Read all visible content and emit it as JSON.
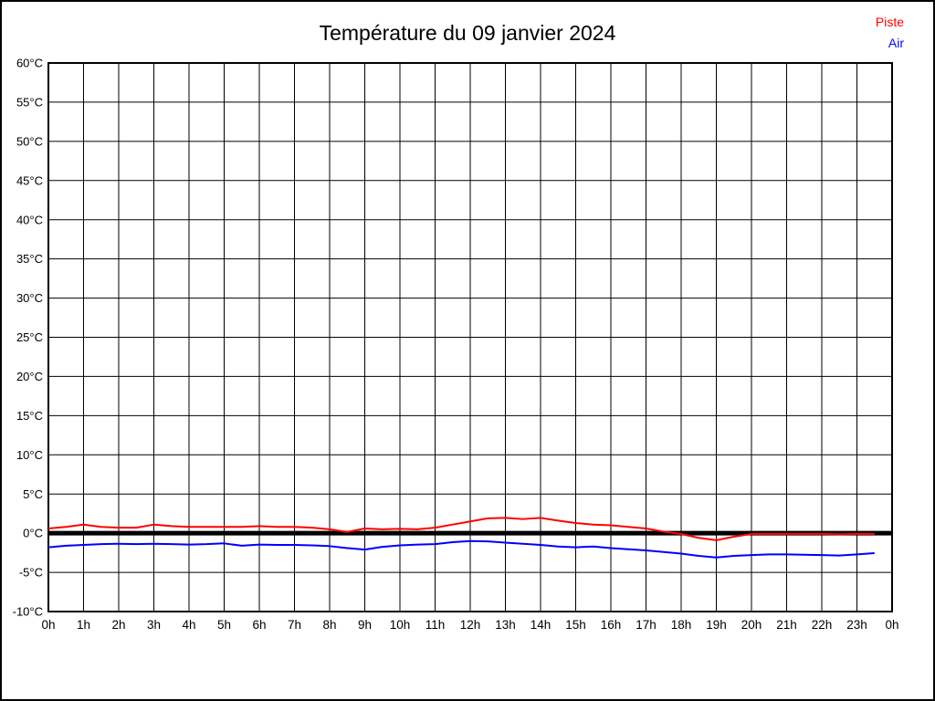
{
  "title": "Température du 09 janvier 2024",
  "legend": [
    {
      "label": "Piste",
      "color": "#ff0000"
    },
    {
      "label": "Air",
      "color": "#0000ff"
    }
  ],
  "chart_data": {
    "type": "line",
    "title": "Température du 09 janvier 2024",
    "xlabel": "",
    "ylabel": "",
    "xlim": [
      0,
      24
    ],
    "ylim": [
      -10,
      60
    ],
    "grid": true,
    "grid_color": "#000000",
    "zero_line": {
      "value": 0,
      "color": "#000000",
      "width": 5
    },
    "legend_position": "top-right",
    "x_ticks": [
      {
        "v": 0,
        "label": "0h"
      },
      {
        "v": 1,
        "label": "1h"
      },
      {
        "v": 2,
        "label": "2h"
      },
      {
        "v": 3,
        "label": "3h"
      },
      {
        "v": 4,
        "label": "4h"
      },
      {
        "v": 5,
        "label": "5h"
      },
      {
        "v": 6,
        "label": "6h"
      },
      {
        "v": 7,
        "label": "7h"
      },
      {
        "v": 8,
        "label": "8h"
      },
      {
        "v": 9,
        "label": "9h"
      },
      {
        "v": 10,
        "label": "10h"
      },
      {
        "v": 11,
        "label": "11h"
      },
      {
        "v": 12,
        "label": "12h"
      },
      {
        "v": 13,
        "label": "13h"
      },
      {
        "v": 14,
        "label": "14h"
      },
      {
        "v": 15,
        "label": "15h"
      },
      {
        "v": 16,
        "label": "16h"
      },
      {
        "v": 17,
        "label": "17h"
      },
      {
        "v": 18,
        "label": "18h"
      },
      {
        "v": 19,
        "label": "19h"
      },
      {
        "v": 20,
        "label": "20h"
      },
      {
        "v": 21,
        "label": "21h"
      },
      {
        "v": 22,
        "label": "22h"
      },
      {
        "v": 23,
        "label": "23h"
      },
      {
        "v": 24,
        "label": "0h"
      }
    ],
    "y_ticks": [
      {
        "v": 60,
        "label": "60°C"
      },
      {
        "v": 55,
        "label": "55°C"
      },
      {
        "v": 50,
        "label": "50°C"
      },
      {
        "v": 45,
        "label": "45°C"
      },
      {
        "v": 40,
        "label": "40°C"
      },
      {
        "v": 35,
        "label": "35°C"
      },
      {
        "v": 30,
        "label": "30°C"
      },
      {
        "v": 25,
        "label": "25°C"
      },
      {
        "v": 20,
        "label": "20°C"
      },
      {
        "v": 15,
        "label": "15°C"
      },
      {
        "v": 10,
        "label": "10°C"
      },
      {
        "v": 5,
        "label": "5°C"
      },
      {
        "v": 0,
        "label": "0°C"
      },
      {
        "v": -5,
        "label": "-5°C"
      },
      {
        "v": -10,
        "label": "-10°C"
      }
    ],
    "x": [
      0,
      0.5,
      1,
      1.5,
      2,
      2.5,
      3,
      3.5,
      4,
      4.5,
      5,
      5.5,
      6,
      6.5,
      7,
      7.5,
      8,
      8.5,
      9,
      9.5,
      10,
      10.5,
      11,
      11.5,
      12,
      12.5,
      13,
      13.5,
      14,
      14.5,
      15,
      15.5,
      16,
      16.5,
      17,
      17.5,
      18,
      18.5,
      19,
      19.5,
      20,
      20.5,
      21,
      21.5,
      22,
      22.5,
      23,
      23.5
    ],
    "series": [
      {
        "name": "Piste",
        "color": "#ff0000",
        "values": [
          0.6,
          0.8,
          1.1,
          0.8,
          0.7,
          0.7,
          1.1,
          0.9,
          0.8,
          0.8,
          0.8,
          0.8,
          0.9,
          0.8,
          0.8,
          0.7,
          0.5,
          0.15,
          0.6,
          0.5,
          0.55,
          0.5,
          0.7,
          1.1,
          1.5,
          1.9,
          1.95,
          1.8,
          1.95,
          1.6,
          1.3,
          1.1,
          1.0,
          0.8,
          0.6,
          0.2,
          -0.1,
          -0.6,
          -0.9,
          -0.45,
          -0.1,
          -0.1,
          -0.1,
          -0.1,
          -0.1,
          -0.15,
          -0.1,
          -0.1
        ]
      },
      {
        "name": "Air",
        "color": "#0000ff",
        "values": [
          -1.8,
          -1.6,
          -1.5,
          -1.4,
          -1.35,
          -1.4,
          -1.35,
          -1.4,
          -1.45,
          -1.4,
          -1.3,
          -1.6,
          -1.45,
          -1.5,
          -1.5,
          -1.55,
          -1.65,
          -1.9,
          -2.1,
          -1.75,
          -1.55,
          -1.45,
          -1.4,
          -1.15,
          -1.0,
          -1.05,
          -1.2,
          -1.35,
          -1.5,
          -1.7,
          -1.8,
          -1.7,
          -1.9,
          -2.05,
          -2.2,
          -2.4,
          -2.6,
          -2.9,
          -3.1,
          -2.9,
          -2.8,
          -2.7,
          -2.7,
          -2.75,
          -2.8,
          -2.85,
          -2.7,
          -2.55
        ]
      }
    ]
  }
}
